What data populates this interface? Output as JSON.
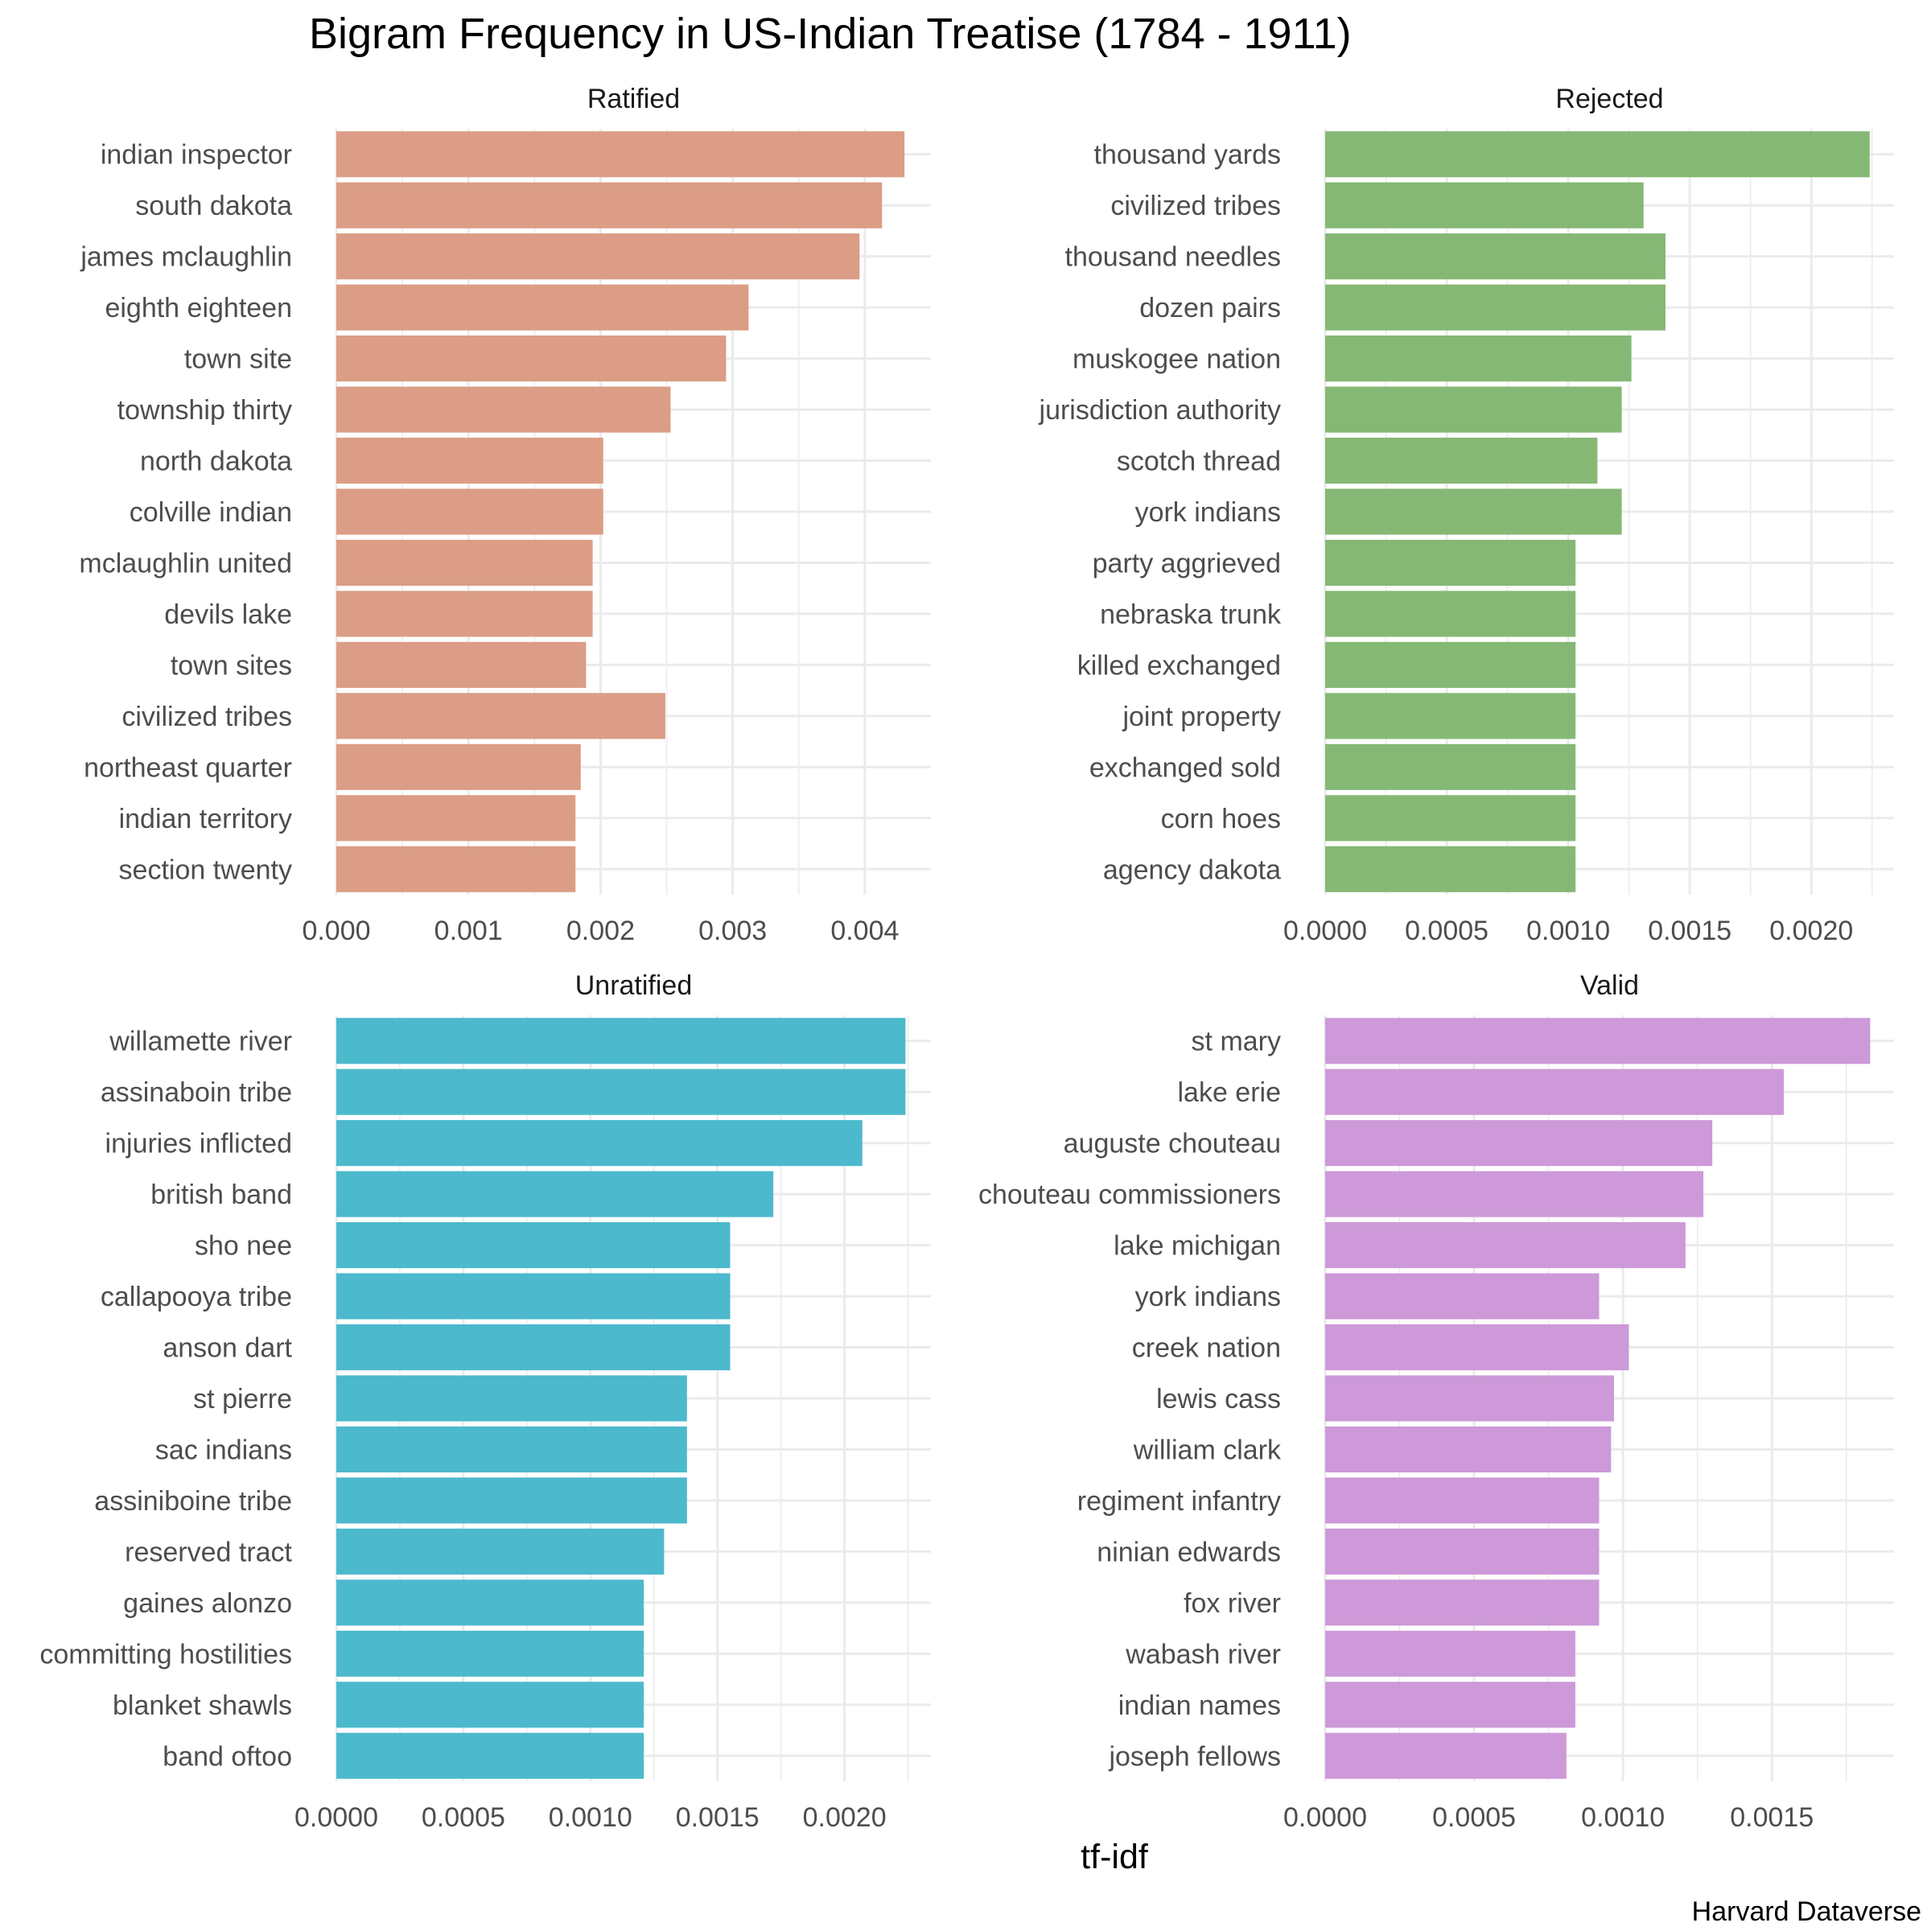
{
  "chart_data": {
    "type": "bar",
    "orientation": "horizontal",
    "title": "Bigram Frequency in US-Indian Treatise (1784 - 1911)",
    "xlabel": "tf-idf",
    "caption": "Harvard Dataverse",
    "grid": true,
    "panels": [
      {
        "name": "Ratified",
        "color": "#db9d85",
        "xlim": [
          0,
          0.0045
        ],
        "ticks": [
          0,
          0.001,
          0.002,
          0.003,
          0.004
        ],
        "tick_labels": [
          "0.000",
          "0.001",
          "0.002",
          "0.003",
          "0.004"
        ],
        "categories": [
          "indian inspector",
          "south dakota",
          "james mclaughlin",
          "eighth eighteen",
          "town site",
          "township thirty",
          "north dakota",
          "colville indian",
          "mclaughlin united",
          "devils lake",
          "town sites",
          "civilized tribes",
          "northeast quarter",
          "indian territory",
          "section twenty"
        ],
        "values": [
          0.0043,
          0.00413,
          0.00396,
          0.00312,
          0.00295,
          0.00253,
          0.00202,
          0.00202,
          0.00194,
          0.00194,
          0.00189,
          0.00249,
          0.00185,
          0.00181,
          0.00181
        ]
      },
      {
        "name": "Rejected",
        "color": "#86b875",
        "xlim": [
          0,
          0.00234
        ],
        "ticks": [
          0,
          0.0005,
          0.001,
          0.0015,
          0.002
        ],
        "tick_labels": [
          "0.0000",
          "0.0005",
          "0.0010",
          "0.0015",
          "0.0020"
        ],
        "categories": [
          "thousand yards",
          "civilized tribes",
          "thousand needles",
          "dozen pairs",
          "muskogee nation",
          "jurisdiction authority",
          "scotch thread",
          "york indians",
          "party aggrieved",
          "nebraska trunk",
          "killed exchanged",
          "joint property",
          "exchanged sold",
          "corn hoes",
          "agency dakota"
        ],
        "values": [
          0.00224,
          0.00131,
          0.0014,
          0.0014,
          0.00126,
          0.00122,
          0.00112,
          0.00122,
          0.00103,
          0.00103,
          0.00103,
          0.00103,
          0.00103,
          0.00103,
          0.00103
        ]
      },
      {
        "name": "Unratified",
        "color": "#4cb9cc",
        "xlim": [
          0,
          0.00234
        ],
        "ticks": [
          0,
          0.0005,
          0.001,
          0.0015,
          0.002
        ],
        "tick_labels": [
          "0.0000",
          "0.0005",
          "0.0010",
          "0.0015",
          "0.0020"
        ],
        "categories": [
          "willamette river",
          "assinaboin tribe",
          "injuries inflicted",
          "british band",
          "sho nee",
          "callapooya tribe",
          "anson dart",
          "st pierre",
          "sac indians",
          "assiniboine tribe",
          "reserved tract",
          "gaines alonzo",
          "committing hostilities",
          "blanket shawls",
          "band oftoo"
        ],
        "values": [
          0.00224,
          0.00224,
          0.00207,
          0.00172,
          0.00155,
          0.00155,
          0.00155,
          0.00138,
          0.00138,
          0.00138,
          0.00129,
          0.00121,
          0.00121,
          0.00121,
          0.00121
        ]
      },
      {
        "name": "Valid",
        "color": "#cd99d8",
        "xlim": [
          0,
          0.00191
        ],
        "ticks": [
          0,
          0.0005,
          0.001,
          0.0015
        ],
        "tick_labels": [
          "0.0000",
          "0.0005",
          "0.0010",
          "0.0015"
        ],
        "categories": [
          "st mary",
          "lake erie",
          "auguste chouteau",
          "chouteau commissioners",
          "lake michigan",
          "york indians",
          "creek nation",
          "lewis cass",
          "william clark",
          "regiment infantry",
          "ninian edwards",
          "fox river",
          "wabash river",
          "indian names",
          "joseph fellows"
        ],
        "values": [
          0.00183,
          0.00154,
          0.0013,
          0.00127,
          0.00121,
          0.00092,
          0.00102,
          0.00097,
          0.00096,
          0.00092,
          0.00092,
          0.00092,
          0.00084,
          0.00084,
          0.00081
        ]
      }
    ]
  }
}
